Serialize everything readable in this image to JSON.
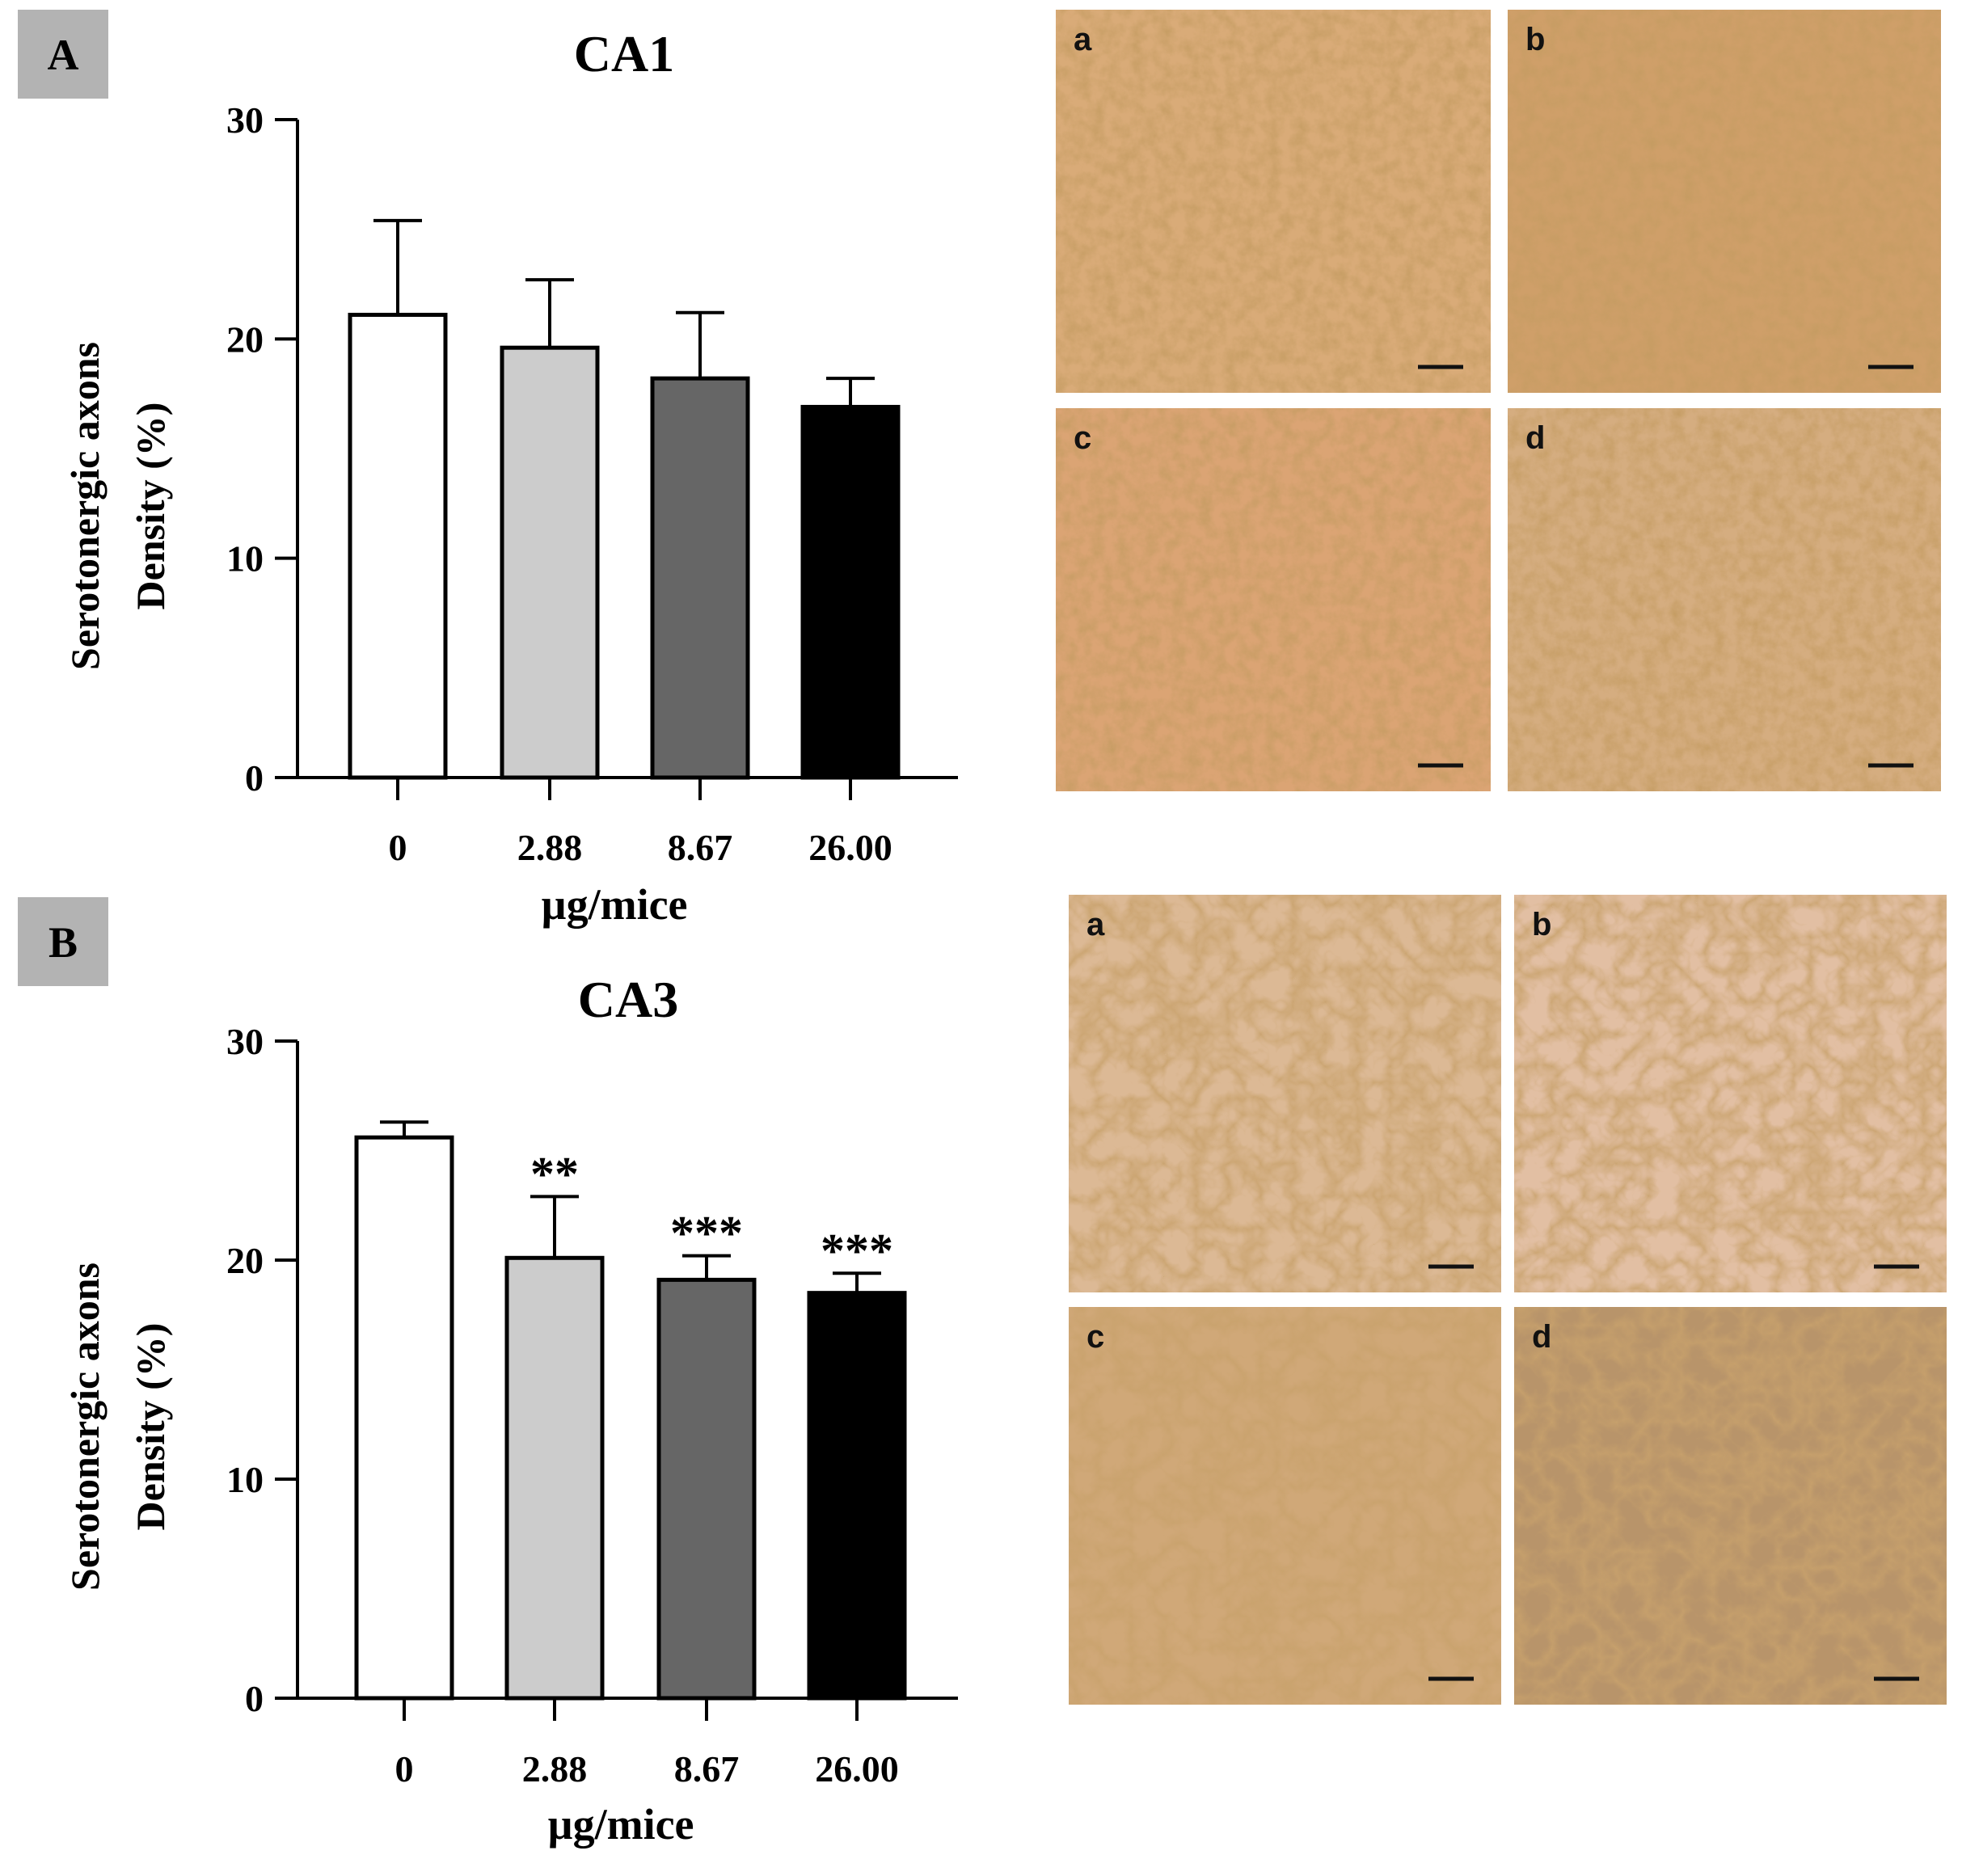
{
  "colors": {
    "bar_fills": [
      "#ffffff",
      "#cccccc",
      "#666666",
      "#000000"
    ],
    "badge": "#b3b3b3",
    "stain_light": "#dcb07e",
    "stain_dark": "#b0763e"
  },
  "chart_data": [
    {
      "type": "bar",
      "panel": "A",
      "title": "CA1",
      "ylabel_line1": "Serotonergic axons",
      "ylabel_line2": "Density (%)",
      "xlabel": "µg/mice",
      "categories": [
        "0",
        "2.88",
        "8.67",
        "26.00"
      ],
      "values": [
        21.1,
        19.6,
        18.2,
        16.9
      ],
      "error_upper": [
        25.4,
        22.7,
        21.2,
        18.2
      ],
      "significance": [
        "",
        "",
        "",
        ""
      ],
      "ylim": [
        0,
        30
      ],
      "yticks": [
        "0",
        "10",
        "20",
        "30"
      ]
    },
    {
      "type": "bar",
      "panel": "B",
      "title": "CA3",
      "ylabel_line1": "Serotonergic axons",
      "ylabel_line2": "Density (%)",
      "xlabel": "µg/mice",
      "categories": [
        "0",
        "2.88",
        "8.67",
        "26.00"
      ],
      "values": [
        25.6,
        20.1,
        19.1,
        18.5
      ],
      "error_upper": [
        26.3,
        22.9,
        20.2,
        19.4
      ],
      "significance": [
        "",
        "**",
        "***",
        "***"
      ],
      "ylim": [
        0,
        30
      ],
      "yticks": [
        "0",
        "10",
        "20",
        "30"
      ]
    }
  ],
  "micrographs": {
    "A": [
      "a",
      "b",
      "c",
      "d"
    ],
    "B": [
      "a",
      "b",
      "c",
      "d"
    ]
  }
}
